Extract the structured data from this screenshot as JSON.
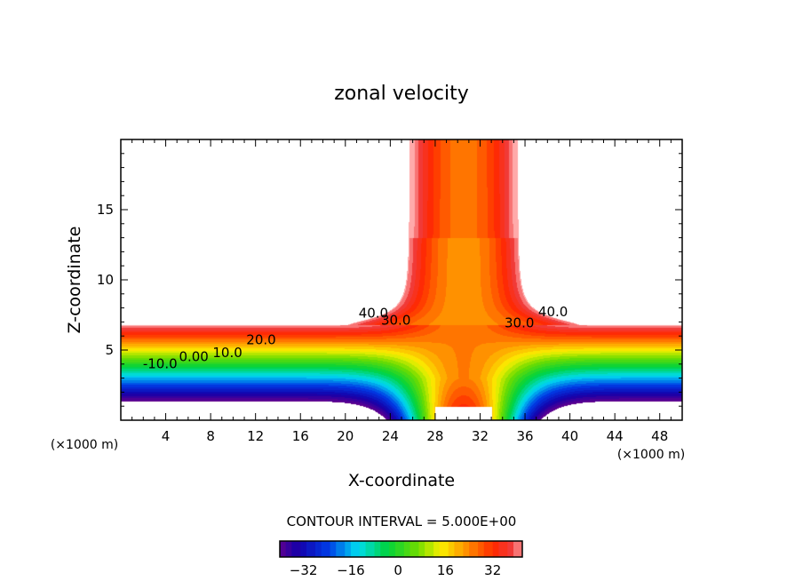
{
  "chart_data": {
    "type": "heatmap",
    "title": "zonal velocity",
    "xlabel": "X-coordinate",
    "ylabel": "Z-coordinate",
    "x_unit_label": "(×1000 m)",
    "y_unit_label": "(×1000 m)",
    "xlim": [
      0,
      50
    ],
    "ylim": [
      0,
      20
    ],
    "x_ticks": [
      4,
      8,
      12,
      16,
      20,
      24,
      28,
      32,
      36,
      40,
      44,
      48
    ],
    "y_ticks": [
      5,
      10,
      15
    ],
    "contour_labels": [
      {
        "text": "40.0",
        "x": 22.5,
        "z": 7.3
      },
      {
        "text": "30.0",
        "x": 24.5,
        "z": 6.8
      },
      {
        "text": "20.0",
        "x": 12.5,
        "z": 5.4
      },
      {
        "text": "10.0",
        "x": 9.5,
        "z": 4.5
      },
      {
        "text": "0.00",
        "x": 6.5,
        "z": 4.2
      },
      {
        "text": "-10.0",
        "x": 3.5,
        "z": 3.7
      },
      {
        "text": "30.0",
        "x": 35.5,
        "z": 6.6
      },
      {
        "text": "40.0",
        "x": 38.5,
        "z": 7.4
      }
    ],
    "contour_interval_text": "CONTOUR INTERVAL = 5.000E+00",
    "contour_interval": 5,
    "colorbar": {
      "range": [
        -40,
        42
      ],
      "ticks": [
        -32,
        -16,
        0,
        16,
        32
      ]
    }
  }
}
